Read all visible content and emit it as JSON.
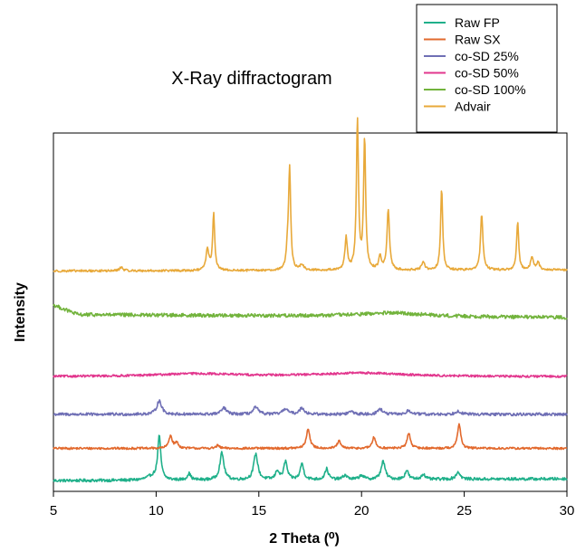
{
  "chart_data": {
    "type": "line",
    "title": "X-Ray diffractogram",
    "xlabel": "2 Theta (⁰)",
    "ylabel": "Intensity",
    "xlim": [
      5,
      30
    ],
    "xticks": [
      "5",
      "10",
      "15",
      "20",
      "25",
      "30"
    ],
    "legend_position": "top-right (outside plot)",
    "grid": false,
    "y_ticks_shown": false,
    "series": [
      {
        "name": "Raw FP",
        "color": "#1fb08a",
        "baseline": 0.03,
        "noise": 0.004,
        "slope": [
          [
            5,
            0.0
          ],
          [
            30,
            0.005
          ]
        ],
        "peaks": [
          [
            9.8,
            0.01,
            0.3
          ],
          [
            10.15,
            0.12,
            0.09
          ],
          [
            11.6,
            0.018,
            0.1
          ],
          [
            13.2,
            0.075,
            0.12
          ],
          [
            14.85,
            0.072,
            0.12
          ],
          [
            15.9,
            0.025,
            0.1
          ],
          [
            16.3,
            0.05,
            0.1
          ],
          [
            17.1,
            0.045,
            0.1
          ],
          [
            18.3,
            0.03,
            0.1
          ],
          [
            19.2,
            0.012,
            0.12
          ],
          [
            20.0,
            0.012,
            0.12
          ],
          [
            21.05,
            0.05,
            0.12
          ],
          [
            22.2,
            0.025,
            0.1
          ],
          [
            23.0,
            0.015,
            0.1
          ],
          [
            24.7,
            0.02,
            0.12
          ]
        ]
      },
      {
        "name": "Raw SX",
        "color": "#e2692d",
        "baseline": 0.12,
        "noise": 0.003,
        "slope": [
          [
            5,
            0.0
          ],
          [
            30,
            0.0
          ]
        ],
        "peaks": [
          [
            10.7,
            0.035,
            0.1
          ],
          [
            11.0,
            0.015,
            0.1
          ],
          [
            13.0,
            0.008,
            0.1
          ],
          [
            17.4,
            0.055,
            0.1
          ],
          [
            18.9,
            0.02,
            0.1
          ],
          [
            20.6,
            0.03,
            0.1
          ],
          [
            22.3,
            0.042,
            0.1
          ],
          [
            24.75,
            0.07,
            0.09
          ]
        ]
      },
      {
        "name": "co-SD 25%",
        "color": "#6f6fb5",
        "baseline": 0.215,
        "noise": 0.004,
        "slope": [
          [
            5,
            0.0
          ],
          [
            30,
            0.0
          ]
        ],
        "peaks": [
          [
            10.15,
            0.038,
            0.14
          ],
          [
            13.3,
            0.018,
            0.14
          ],
          [
            14.85,
            0.02,
            0.14
          ],
          [
            16.3,
            0.016,
            0.14
          ],
          [
            17.1,
            0.018,
            0.14
          ],
          [
            19.5,
            0.008,
            0.15
          ],
          [
            20.9,
            0.015,
            0.14
          ],
          [
            22.3,
            0.01,
            0.14
          ],
          [
            24.7,
            0.01,
            0.14
          ]
        ]
      },
      {
        "name": "co-SD 50%",
        "color": "#e2378e",
        "baseline": 0.32,
        "noise": 0.003,
        "slope": [
          [
            5,
            0.0
          ],
          [
            30,
            0.0
          ]
        ],
        "peaks": [
          [
            12.0,
            0.008,
            2.5
          ],
          [
            20.0,
            0.01,
            2.5
          ]
        ]
      },
      {
        "name": "co-SD 100%",
        "color": "#72b33c",
        "baseline": 0.485,
        "noise": 0.005,
        "slope": [
          [
            5,
            0.035
          ],
          [
            6.2,
            0.008
          ],
          [
            30,
            0.0
          ]
        ],
        "peaks": [
          [
            21.5,
            0.01,
            2.0
          ]
        ]
      },
      {
        "name": "Advair",
        "color": "#e8a93a",
        "baseline": 0.615,
        "noise": 0.003,
        "slope": [
          [
            5,
            0.0
          ],
          [
            30,
            0.003
          ]
        ],
        "peaks": [
          [
            8.3,
            0.01,
            0.1
          ],
          [
            12.5,
            0.06,
            0.08
          ],
          [
            12.8,
            0.16,
            0.06
          ],
          [
            16.4,
            0.05,
            0.07
          ],
          [
            16.5,
            0.28,
            0.06
          ],
          [
            17.1,
            0.015,
            0.1
          ],
          [
            19.25,
            0.09,
            0.07
          ],
          [
            19.8,
            0.415,
            0.06
          ],
          [
            20.15,
            0.365,
            0.06
          ],
          [
            20.9,
            0.04,
            0.07
          ],
          [
            21.3,
            0.17,
            0.07
          ],
          [
            23.0,
            0.025,
            0.08
          ],
          [
            23.9,
            0.23,
            0.06
          ],
          [
            25.85,
            0.155,
            0.07
          ],
          [
            27.6,
            0.135,
            0.06
          ],
          [
            28.3,
            0.035,
            0.08
          ],
          [
            28.6,
            0.02,
            0.08
          ]
        ]
      }
    ]
  }
}
